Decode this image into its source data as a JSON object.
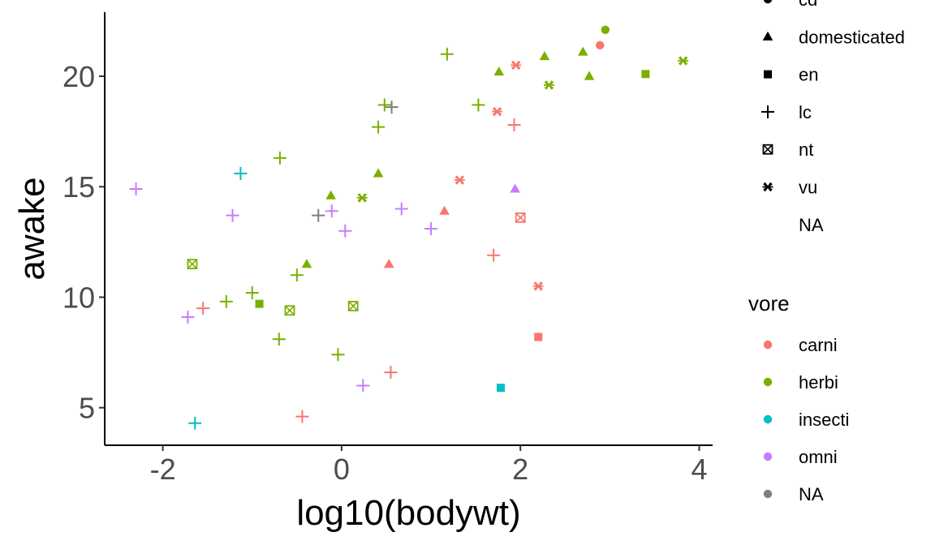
{
  "chart_data": {
    "type": "scatter",
    "title": "",
    "xlabel": "log10(bodywt)",
    "ylabel": "awake",
    "xlim": [
      -2.65,
      4.15
    ],
    "ylim": [
      3.3,
      22.9
    ],
    "x_ticks": [
      -2,
      0,
      2,
      4
    ],
    "y_ticks": [
      5,
      10,
      15,
      20
    ],
    "x_tick_labels": [
      "-2",
      "0",
      "2",
      "4"
    ],
    "y_tick_labels": [
      "5",
      "10",
      "15",
      "20"
    ],
    "grid": false,
    "legend_placement": "right",
    "colors": {
      "carni": "#F8766D",
      "herbi": "#7CAE00",
      "insecti": "#00BFC4",
      "omni": "#C77CFF",
      "NA": "#7F7F7F"
    },
    "legends": {
      "shape": {
        "items": [
          {
            "label": "cd",
            "shape": "circle"
          },
          {
            "label": "domesticated",
            "shape": "triangle"
          },
          {
            "label": "en",
            "shape": "square"
          },
          {
            "label": "lc",
            "shape": "plus"
          },
          {
            "label": "nt",
            "shape": "boxcross"
          },
          {
            "label": "vu",
            "shape": "asterisk"
          },
          {
            "label": "NA",
            "shape": "none"
          }
        ]
      },
      "color": {
        "title": "vore",
        "items": [
          "carni",
          "herbi",
          "insecti",
          "omni",
          "NA"
        ]
      }
    },
    "points": [
      {
        "x": 2.95,
        "y": 22.1,
        "vore": "herbi",
        "shape": "circle"
      },
      {
        "x": 2.89,
        "y": 21.4,
        "vore": "carni",
        "shape": "circle"
      },
      {
        "x": 2.27,
        "y": 20.9,
        "vore": "herbi",
        "shape": "triangle"
      },
      {
        "x": 2.7,
        "y": 21.1,
        "vore": "herbi",
        "shape": "triangle"
      },
      {
        "x": 2.77,
        "y": 20.0,
        "vore": "herbi",
        "shape": "triangle"
      },
      {
        "x": 1.76,
        "y": 20.2,
        "vore": "herbi",
        "shape": "triangle"
      },
      {
        "x": 0.41,
        "y": 15.6,
        "vore": "herbi",
        "shape": "triangle"
      },
      {
        "x": -0.12,
        "y": 14.6,
        "vore": "herbi",
        "shape": "triangle"
      },
      {
        "x": -0.39,
        "y": 11.5,
        "vore": "herbi",
        "shape": "triangle"
      },
      {
        "x": 0.53,
        "y": 11.5,
        "vore": "carni",
        "shape": "triangle"
      },
      {
        "x": 1.15,
        "y": 13.9,
        "vore": "carni",
        "shape": "triangle"
      },
      {
        "x": 1.94,
        "y": 14.9,
        "vore": "omni",
        "shape": "triangle"
      },
      {
        "x": 3.4,
        "y": 20.1,
        "vore": "herbi",
        "shape": "square"
      },
      {
        "x": -0.92,
        "y": 9.7,
        "vore": "herbi",
        "shape": "square"
      },
      {
        "x": 2.2,
        "y": 8.2,
        "vore": "carni",
        "shape": "square"
      },
      {
        "x": 1.78,
        "y": 5.9,
        "vore": "insecti",
        "shape": "square"
      },
      {
        "x": 1.18,
        "y": 21.0,
        "vore": "herbi",
        "shape": "plus"
      },
      {
        "x": 0.48,
        "y": 18.7,
        "vore": "herbi",
        "shape": "plus"
      },
      {
        "x": 0.41,
        "y": 17.7,
        "vore": "herbi",
        "shape": "plus"
      },
      {
        "x": 1.53,
        "y": 18.7,
        "vore": "herbi",
        "shape": "plus"
      },
      {
        "x": 0.56,
        "y": 18.6,
        "vore": "NA",
        "shape": "plus"
      },
      {
        "x": 1.93,
        "y": 17.8,
        "vore": "carni",
        "shape": "plus"
      },
      {
        "x": -0.69,
        "y": 16.3,
        "vore": "herbi",
        "shape": "plus"
      },
      {
        "x": -1.13,
        "y": 15.6,
        "vore": "insecti",
        "shape": "plus"
      },
      {
        "x": -2.3,
        "y": 14.9,
        "vore": "omni",
        "shape": "plus"
      },
      {
        "x": -1.22,
        "y": 13.7,
        "vore": "omni",
        "shape": "plus"
      },
      {
        "x": -0.26,
        "y": 13.7,
        "vore": "NA",
        "shape": "plus"
      },
      {
        "x": -0.11,
        "y": 13.9,
        "vore": "omni",
        "shape": "plus"
      },
      {
        "x": 0.67,
        "y": 14.0,
        "vore": "omni",
        "shape": "plus"
      },
      {
        "x": 0.04,
        "y": 13.0,
        "vore": "omni",
        "shape": "plus"
      },
      {
        "x": 1.0,
        "y": 13.1,
        "vore": "omni",
        "shape": "plus"
      },
      {
        "x": 1.7,
        "y": 11.9,
        "vore": "carni",
        "shape": "plus"
      },
      {
        "x": -0.5,
        "y": 11.0,
        "vore": "herbi",
        "shape": "plus"
      },
      {
        "x": -1.0,
        "y": 10.2,
        "vore": "herbi",
        "shape": "plus"
      },
      {
        "x": -1.29,
        "y": 9.8,
        "vore": "herbi",
        "shape": "plus"
      },
      {
        "x": -1.55,
        "y": 9.5,
        "vore": "carni",
        "shape": "plus"
      },
      {
        "x": -1.72,
        "y": 9.1,
        "vore": "omni",
        "shape": "plus"
      },
      {
        "x": -0.7,
        "y": 8.1,
        "vore": "herbi",
        "shape": "plus"
      },
      {
        "x": -0.04,
        "y": 7.4,
        "vore": "herbi",
        "shape": "plus"
      },
      {
        "x": 0.24,
        "y": 6.0,
        "vore": "omni",
        "shape": "plus"
      },
      {
        "x": 0.55,
        "y": 6.6,
        "vore": "carni",
        "shape": "plus"
      },
      {
        "x": -0.44,
        "y": 4.6,
        "vore": "carni",
        "shape": "plus"
      },
      {
        "x": -1.64,
        "y": 4.3,
        "vore": "insecti",
        "shape": "plus"
      },
      {
        "x": -1.67,
        "y": 11.5,
        "vore": "herbi",
        "shape": "boxcross"
      },
      {
        "x": -0.58,
        "y": 9.4,
        "vore": "herbi",
        "shape": "boxcross"
      },
      {
        "x": 0.13,
        "y": 9.6,
        "vore": "herbi",
        "shape": "boxcross"
      },
      {
        "x": 2.0,
        "y": 13.6,
        "vore": "carni",
        "shape": "boxcross"
      },
      {
        "x": 3.82,
        "y": 20.7,
        "vore": "herbi",
        "shape": "asterisk"
      },
      {
        "x": 2.32,
        "y": 19.6,
        "vore": "herbi",
        "shape": "asterisk"
      },
      {
        "x": 1.95,
        "y": 20.5,
        "vore": "carni",
        "shape": "asterisk"
      },
      {
        "x": 1.74,
        "y": 18.4,
        "vore": "carni",
        "shape": "asterisk"
      },
      {
        "x": 1.32,
        "y": 15.3,
        "vore": "carni",
        "shape": "asterisk"
      },
      {
        "x": 0.23,
        "y": 14.5,
        "vore": "herbi",
        "shape": "asterisk"
      },
      {
        "x": 2.2,
        "y": 10.5,
        "vore": "carni",
        "shape": "asterisk"
      }
    ]
  }
}
